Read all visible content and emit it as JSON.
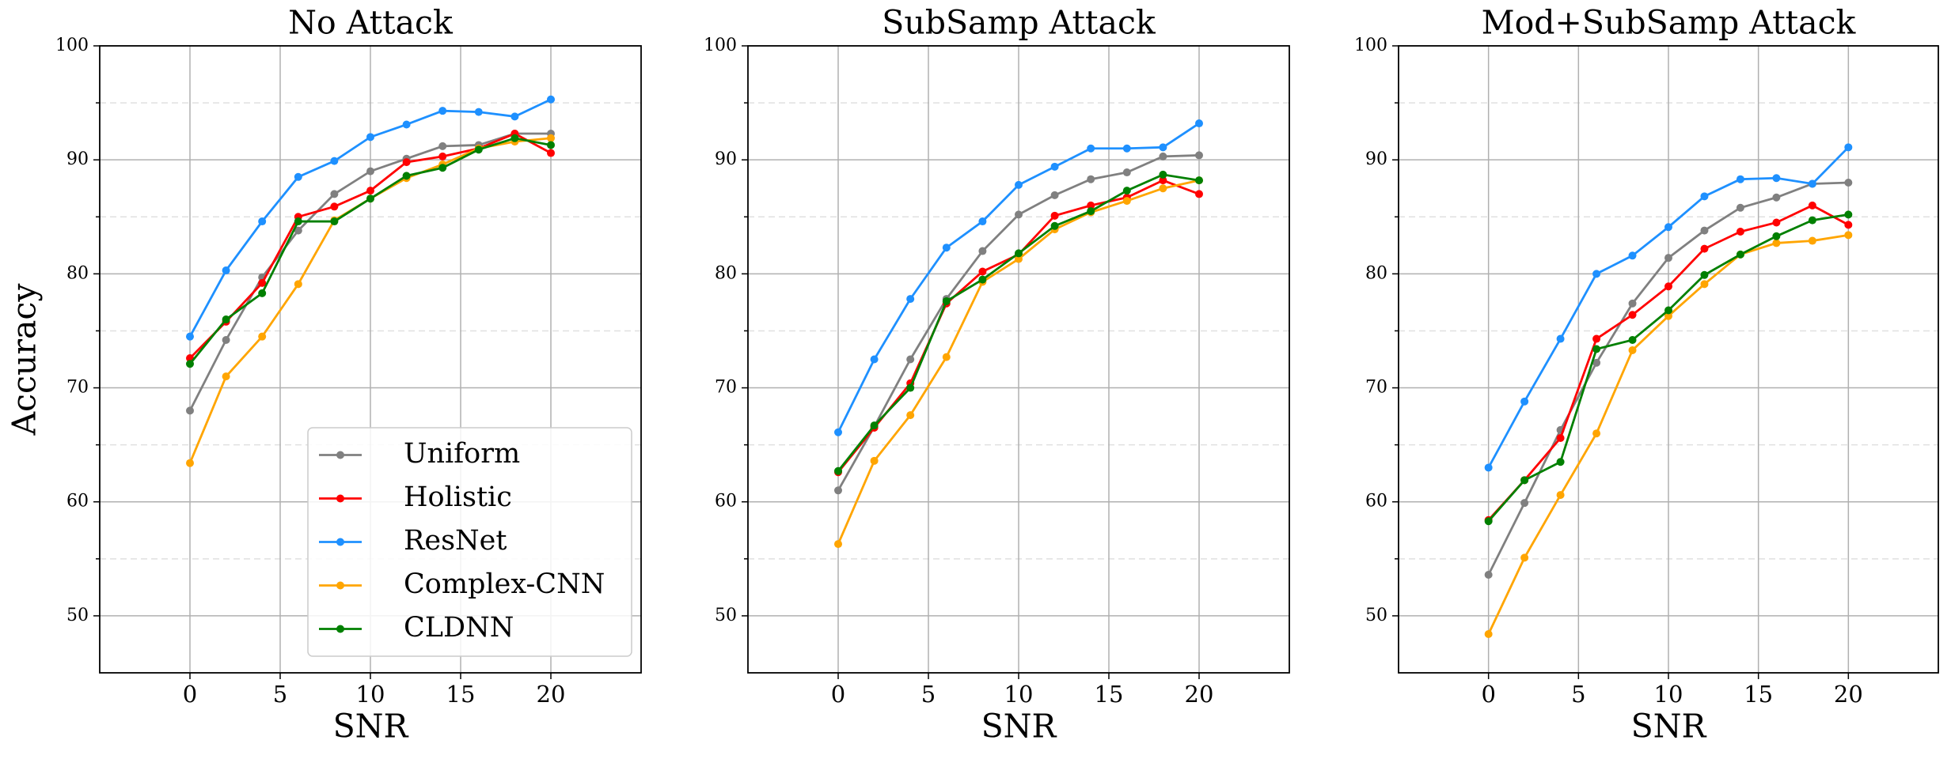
{
  "chart_data": [
    {
      "type": "line",
      "title": "No Attack",
      "xlabel": "SNR",
      "ylabel": "Accuracy",
      "x": [
        0,
        2,
        4,
        6,
        8,
        10,
        12,
        14,
        16,
        18,
        20
      ],
      "xlim": [
        -5,
        25
      ],
      "xticks": [
        0,
        5,
        10,
        15,
        20
      ],
      "ylim": [
        45,
        100
      ],
      "yticks": [
        50,
        60,
        70,
        80,
        90,
        100
      ],
      "y_minor_ticks": [
        55,
        65,
        75,
        85,
        95
      ],
      "grid": true,
      "legend": "lower right",
      "series": [
        {
          "name": "Uniform",
          "color": "#808080",
          "values": [
            68.0,
            74.2,
            79.7,
            83.8,
            87.0,
            89.0,
            90.1,
            91.2,
            91.3,
            92.3,
            92.3
          ]
        },
        {
          "name": "Holistic",
          "color": "#ff0000",
          "values": [
            72.6,
            75.8,
            79.2,
            85.0,
            85.9,
            87.3,
            89.8,
            90.3,
            91.0,
            92.3,
            90.6
          ]
        },
        {
          "name": "ResNet",
          "color": "#1e90ff",
          "values": [
            74.5,
            80.3,
            84.6,
            88.5,
            89.9,
            92.0,
            93.1,
            94.3,
            94.2,
            93.8,
            95.3
          ]
        },
        {
          "name": "Complex-CNN",
          "color": "#ffa500",
          "values": [
            63.4,
            71.0,
            74.5,
            79.1,
            84.7,
            86.6,
            88.4,
            89.6,
            91.0,
            91.6,
            91.9
          ]
        },
        {
          "name": "CLDNN",
          "color": "#008000",
          "values": [
            72.1,
            76.0,
            78.3,
            84.6,
            84.6,
            86.6,
            88.6,
            89.3,
            90.9,
            91.9,
            91.3
          ]
        }
      ]
    },
    {
      "type": "line",
      "title": "SubSamp Attack",
      "xlabel": "SNR",
      "x": [
        0,
        2,
        4,
        6,
        8,
        10,
        12,
        14,
        16,
        18,
        20
      ],
      "xlim": [
        -5,
        25
      ],
      "xticks": [
        0,
        5,
        10,
        15,
        20
      ],
      "ylim": [
        45,
        100
      ],
      "yticks": [
        50,
        60,
        70,
        80,
        90,
        100
      ],
      "y_minor_ticks": [
        55,
        65,
        75,
        85,
        95
      ],
      "grid": true,
      "series": [
        {
          "name": "Uniform",
          "color": "#808080",
          "values": [
            61.0,
            66.6,
            72.5,
            77.8,
            82.0,
            85.2,
            86.9,
            88.3,
            88.9,
            90.3,
            90.4
          ]
        },
        {
          "name": "Holistic",
          "color": "#ff0000",
          "values": [
            62.6,
            66.5,
            70.4,
            77.4,
            80.2,
            81.7,
            85.1,
            86.0,
            86.7,
            88.2,
            87.0
          ]
        },
        {
          "name": "ResNet",
          "color": "#1e90ff",
          "values": [
            66.1,
            72.5,
            77.8,
            82.3,
            84.6,
            87.8,
            89.4,
            91.0,
            91.0,
            91.1,
            93.2
          ]
        },
        {
          "name": "Complex-CNN",
          "color": "#ffa500",
          "values": [
            56.3,
            63.6,
            67.6,
            72.7,
            79.3,
            81.3,
            83.9,
            85.4,
            86.4,
            87.5,
            88.2
          ]
        },
        {
          "name": "CLDNN",
          "color": "#008000",
          "values": [
            62.7,
            66.7,
            70.0,
            77.6,
            79.5,
            81.8,
            84.2,
            85.5,
            87.3,
            88.7,
            88.2
          ]
        }
      ]
    },
    {
      "type": "line",
      "title": "Mod+SubSamp Attack",
      "xlabel": "SNR",
      "x": [
        0,
        2,
        4,
        6,
        8,
        10,
        12,
        14,
        16,
        18,
        20
      ],
      "xlim": [
        -5,
        25
      ],
      "xticks": [
        0,
        5,
        10,
        15,
        20
      ],
      "ylim": [
        45,
        100
      ],
      "yticks": [
        50,
        60,
        70,
        80,
        90,
        100
      ],
      "y_minor_ticks": [
        55,
        65,
        75,
        85,
        95
      ],
      "grid": true,
      "series": [
        {
          "name": "Uniform",
          "color": "#808080",
          "values": [
            53.6,
            59.9,
            66.3,
            72.2,
            77.4,
            81.4,
            83.8,
            85.8,
            86.7,
            87.9,
            88.0
          ]
        },
        {
          "name": "Holistic",
          "color": "#ff0000",
          "values": [
            58.4,
            61.9,
            65.6,
            74.3,
            76.4,
            78.9,
            82.2,
            83.7,
            84.5,
            86.0,
            84.3
          ]
        },
        {
          "name": "ResNet",
          "color": "#1e90ff",
          "values": [
            63.0,
            68.8,
            74.3,
            80.0,
            81.6,
            84.1,
            86.8,
            88.3,
            88.4,
            87.9,
            91.1
          ]
        },
        {
          "name": "Complex-CNN",
          "color": "#ffa500",
          "values": [
            48.4,
            55.1,
            60.6,
            66.0,
            73.3,
            76.3,
            79.1,
            81.7,
            82.7,
            82.9,
            83.4
          ]
        },
        {
          "name": "CLDNN",
          "color": "#008000",
          "values": [
            58.3,
            61.9,
            63.5,
            73.4,
            74.2,
            76.8,
            79.9,
            81.7,
            83.3,
            84.7,
            85.2
          ]
        }
      ]
    }
  ]
}
